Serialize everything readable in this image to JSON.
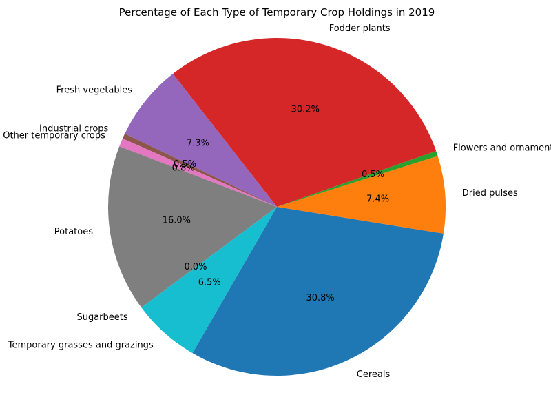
{
  "chart_data": {
    "type": "pie",
    "title": "Percentage of Each Type of Temporary Crop Holdings in 2019",
    "start_angle_deg": 240,
    "direction": "counterclockwise",
    "slices": [
      {
        "label": "Cereals",
        "value": 30.8,
        "pct_label": "30.8%",
        "color": "#1f77b4"
      },
      {
        "label": "Dried pulses",
        "value": 7.4,
        "pct_label": "7.4%",
        "color": "#ff7f0e"
      },
      {
        "label": "Flowers and ornamental plants",
        "value": 0.5,
        "pct_label": "0.5%",
        "color": "#2ca02c"
      },
      {
        "label": "Fodder plants",
        "value": 30.2,
        "pct_label": "30.2%",
        "color": "#d62728"
      },
      {
        "label": "Fresh vegetables",
        "value": 7.3,
        "pct_label": "7.3%",
        "color": "#9467bd"
      },
      {
        "label": "Industrial crops",
        "value": 0.5,
        "pct_label": "0.5%",
        "color": "#8c564b"
      },
      {
        "label": "Other temporary crops",
        "value": 0.8,
        "pct_label": "0.8%",
        "color": "#e377c2"
      },
      {
        "label": "Potatoes",
        "value": 16.0,
        "pct_label": "16.0%",
        "color": "#7f7f7f"
      },
      {
        "label": "Sugarbeets",
        "value": 0.0,
        "pct_label": "0.0%",
        "color": "#bcbd22"
      },
      {
        "label": "Temporary grasses and grazings",
        "value": 6.5,
        "pct_label": "6.5%",
        "color": "#17becf"
      }
    ]
  }
}
